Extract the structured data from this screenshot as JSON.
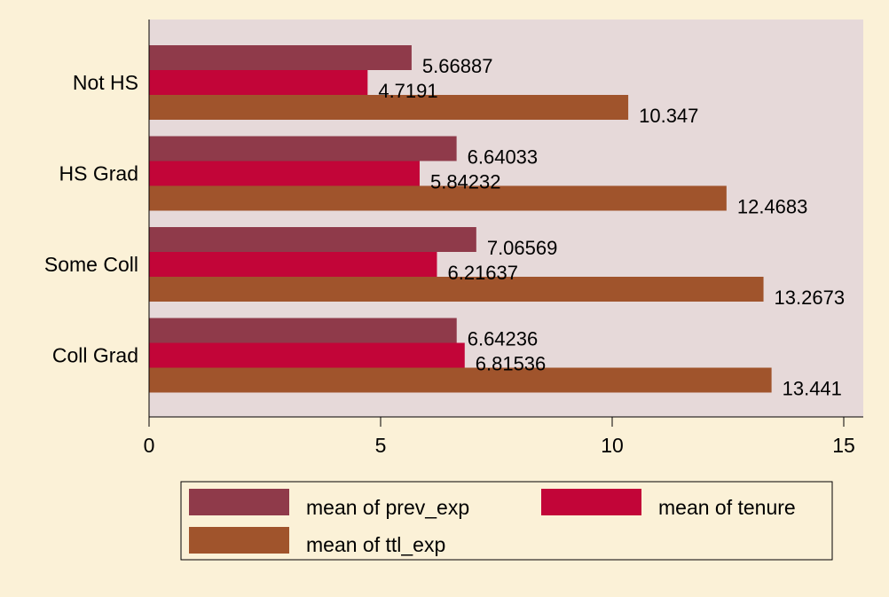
{
  "chart_data": {
    "type": "bar",
    "orientation": "horizontal",
    "title": "",
    "xlabel": "",
    "ylabel": "",
    "categories": [
      "Not HS",
      "HS Grad",
      "Some Coll",
      "Coll Grad"
    ],
    "series": [
      {
        "name": "mean of prev_exp",
        "color": "#8f3a4a",
        "values": [
          5.66887,
          6.64033,
          7.06569,
          6.64236
        ],
        "labels": [
          "5.66887",
          "6.64033",
          "7.06569",
          "6.64236"
        ]
      },
      {
        "name": "mean of tenure",
        "color": "#c20538",
        "values": [
          4.7191,
          5.84232,
          6.21637,
          6.81536
        ],
        "labels": [
          "4.7191",
          "5.84232",
          "6.21637",
          "6.81536"
        ]
      },
      {
        "name": "mean of ttl_exp",
        "color": "#a0542c",
        "values": [
          10.347,
          12.4683,
          13.2673,
          13.441
        ],
        "labels": [
          "10.347",
          "12.4683",
          "13.2673",
          "13.441"
        ]
      }
    ],
    "xlim": [
      0,
      15
    ],
    "x_ticks": [
      0,
      5,
      10,
      15
    ],
    "x_tick_labels": [
      "0",
      "5",
      "10",
      "15"
    ],
    "grid": false,
    "legend_position": "bottom",
    "colors": {
      "page_background": "#fbf1d7",
      "plot_background": "#e6d9d9",
      "legend_background": "#fbf1d7"
    }
  }
}
